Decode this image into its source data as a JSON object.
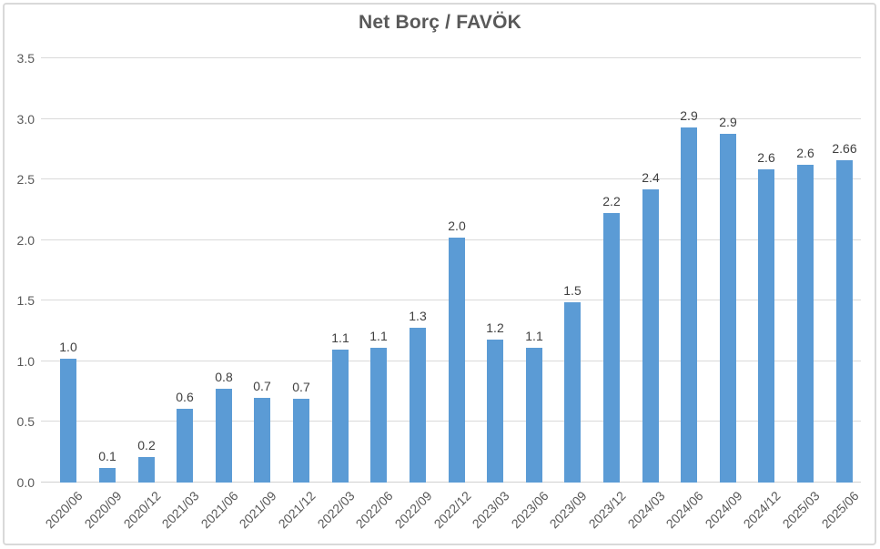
{
  "chart_data": {
    "type": "bar",
    "title": "Net Borç / FAVÖK",
    "xlabel": "",
    "ylabel": "",
    "categories": [
      "2020/06",
      "2020/09",
      "2020/12",
      "2021/03",
      "2021/06",
      "2021/09",
      "2021/12",
      "2022/03",
      "2022/06",
      "2022/09",
      "2022/12",
      "2023/03",
      "2023/06",
      "2023/09",
      "2023/12",
      "2024/03",
      "2024/06",
      "2024/09",
      "2024/12",
      "2025/03",
      "2025/06"
    ],
    "values": [
      1.02,
      0.12,
      0.21,
      0.61,
      0.77,
      0.7,
      0.69,
      1.1,
      1.11,
      1.28,
      2.02,
      1.18,
      1.11,
      1.49,
      2.22,
      2.42,
      2.93,
      2.88,
      2.58,
      2.62,
      2.66
    ],
    "value_labels": [
      "1.0",
      "0.1",
      "0.2",
      "0.6",
      "0.8",
      "0.7",
      "0.7",
      "1.1",
      "1.1",
      "1.3",
      "2.0",
      "1.2",
      "1.1",
      "1.5",
      "2.2",
      "2.4",
      "2.9",
      "2.9",
      "2.6",
      "2.6",
      "2.66"
    ],
    "ylim": [
      0,
      3.5
    ],
    "y_ticks": [
      0,
      0.5,
      1,
      1.5,
      2,
      2.5,
      3,
      3.5
    ],
    "y_tick_labels": [
      "0.0",
      "0.5",
      "1.0",
      "1.5",
      "2.0",
      "2.5",
      "3.0",
      "3.5"
    ],
    "grid": true,
    "legend": false,
    "x_tick_rotation_deg": -45,
    "bar_color": "#5B9BD5",
    "colors": {
      "title_text": "#595959",
      "tick_text": "#595959",
      "data_label_text": "#404040",
      "gridline": "#D9D9D9",
      "axis_line": "#D0D0D0",
      "chart_border": "#D9D9D9",
      "background": "#FFFFFF"
    }
  }
}
